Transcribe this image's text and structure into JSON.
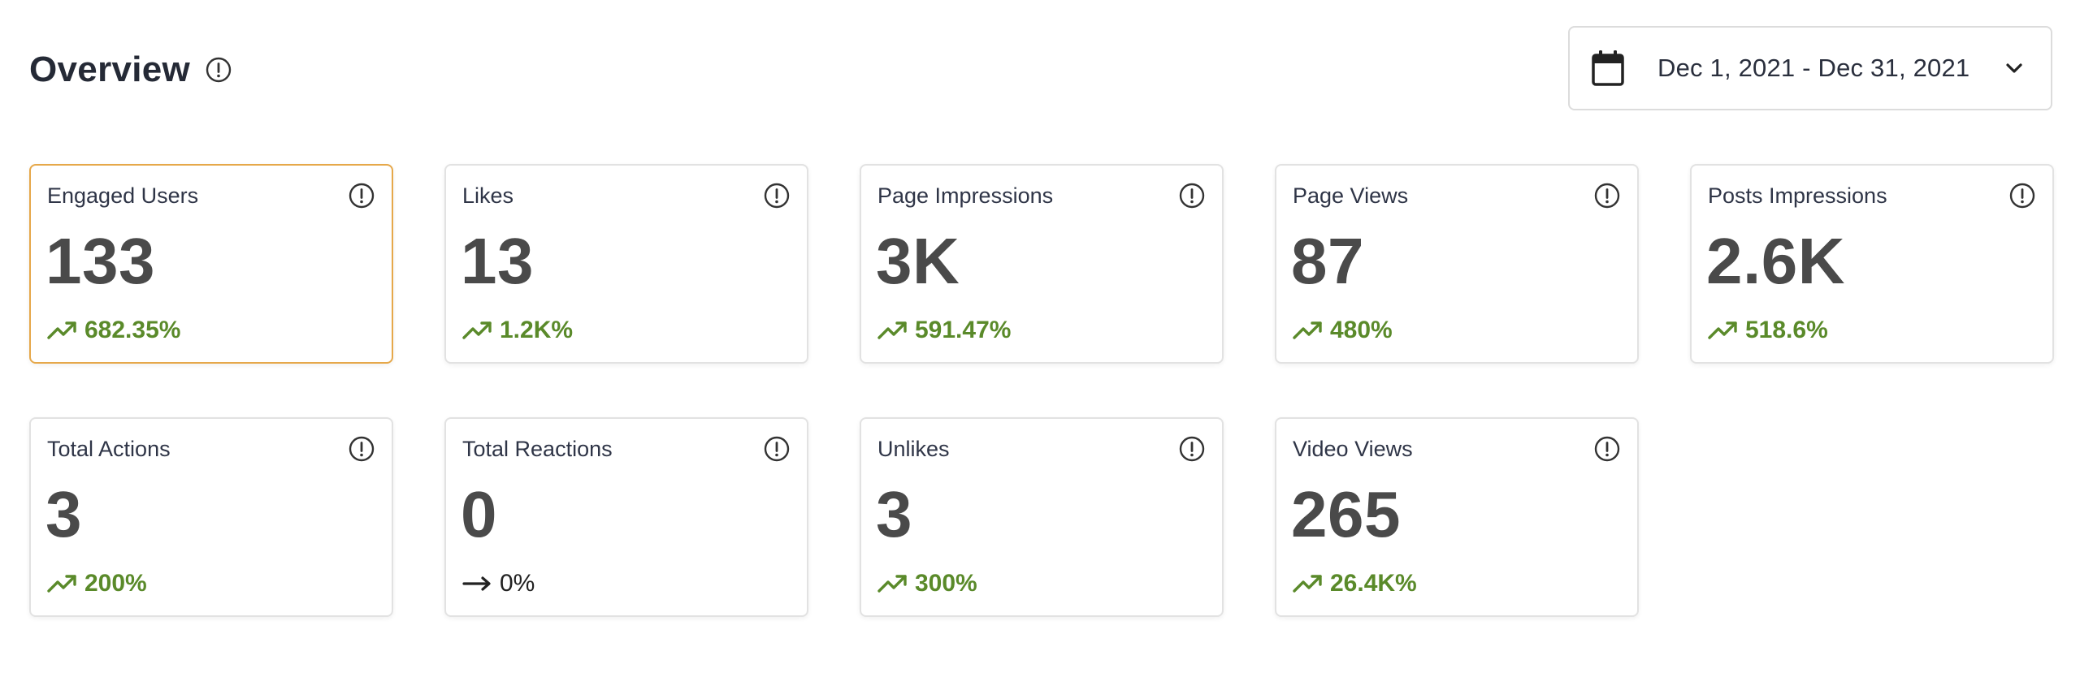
{
  "header": {
    "title": "Overview",
    "info_icon": "info-circle-icon"
  },
  "date_range": {
    "label": "Dec 1, 2021 - Dec 31, 2021",
    "icon": "calendar-icon",
    "chevron": "chevron-down-icon"
  },
  "colors": {
    "positive": "#5a8a2a",
    "neutral": "#222222",
    "selected_border": "#e6a84a",
    "card_border": "#e2e2e2"
  },
  "metrics": [
    {
      "label": "Engaged Users",
      "value": "133",
      "change": "682.35%",
      "trend": "up",
      "selected": true
    },
    {
      "label": "Likes",
      "value": "13",
      "change": "1.2K%",
      "trend": "up"
    },
    {
      "label": "Page Impressions",
      "value": "3K",
      "change": "591.47%",
      "trend": "up"
    },
    {
      "label": "Page Views",
      "value": "87",
      "change": "480%",
      "trend": "up"
    },
    {
      "label": "Posts Impressions",
      "value": "2.6K",
      "change": "518.6%",
      "trend": "up"
    },
    {
      "label": "Total Actions",
      "value": "3",
      "change": "200%",
      "trend": "up"
    },
    {
      "label": "Total Reactions",
      "value": "0",
      "change": "0%",
      "trend": "flat"
    },
    {
      "label": "Unlikes",
      "value": "3",
      "change": "300%",
      "trend": "up"
    },
    {
      "label": "Video Views",
      "value": "265",
      "change": "26.4K%",
      "trend": "up"
    }
  ]
}
